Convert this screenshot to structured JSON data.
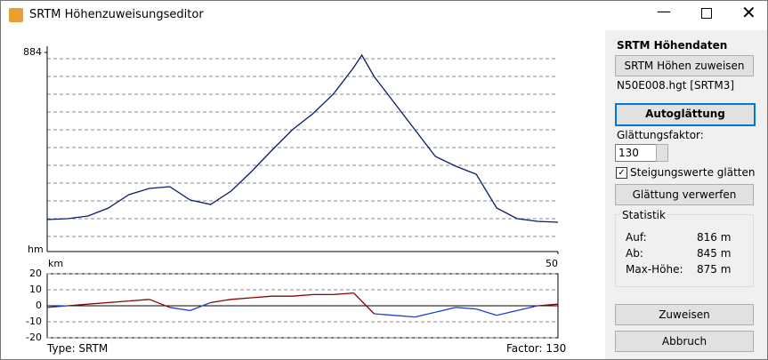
{
  "window": {
    "title": "SRTM Höhenzuweisungseditor"
  },
  "profile": {
    "type": "line",
    "color": "#0a1a6e",
    "x": [
      0,
      2,
      4,
      6,
      8,
      10,
      12,
      14,
      16,
      18,
      20,
      22,
      24,
      26,
      28,
      30,
      30.8,
      32,
      34,
      36,
      38,
      40,
      42,
      44,
      46,
      48,
      50
    ],
    "values": [
      320,
      323,
      332,
      359,
      404,
      425,
      431,
      386,
      371,
      416,
      482,
      554,
      623,
      677,
      743,
      833,
      875,
      803,
      713,
      623,
      533,
      500,
      473,
      359,
      323,
      314,
      311
    ],
    "xlim": [
      0,
      50
    ],
    "ylim": [
      212,
      884
    ],
    "yticks": [
      884
    ],
    "y_unit": "hm",
    "x_unit": "km",
    "xticks": [
      50
    ]
  },
  "slope": {
    "type": "line",
    "pos_color": "#8b0000",
    "neg_color": "#1f3fcf",
    "x": [
      0,
      2,
      4,
      6,
      8,
      10,
      12,
      14,
      16,
      18,
      20,
      22,
      24,
      26,
      28,
      30,
      32,
      34,
      36,
      38,
      40,
      42,
      44,
      46,
      48,
      50
    ],
    "values": [
      -1,
      0,
      1,
      2,
      3,
      4,
      -1,
      -3,
      2,
      4,
      5,
      6,
      6,
      7,
      7,
      8,
      -5,
      -6,
      -7,
      -4,
      -1,
      -2,
      -6,
      -3,
      0,
      1
    ],
    "xlim": [
      0,
      50
    ],
    "ylim": [
      -20,
      20
    ],
    "yticks": [
      20,
      10,
      0,
      -10,
      -20
    ]
  },
  "footer": {
    "type": "Type: SRTM",
    "factor": "Factor: 130"
  },
  "panel": {
    "heading": "SRTM Höhendaten",
    "assign_button": "SRTM Höhen zuweisen",
    "file": "N50E008.hgt [SRTM3]",
    "auto_button": "Autoglättung",
    "factor_label": "Glättungsfaktor:",
    "factor_value": "130",
    "checkbox": "Steigungswerte glätten",
    "discard_button": "Glättung verwerfen",
    "stats": {
      "title": "Statistik",
      "rows": [
        [
          "Auf:",
          "816 m"
        ],
        [
          "Ab:",
          "845 m"
        ],
        [
          "Max-Höhe:",
          "875 m"
        ]
      ]
    },
    "ok_button": "Zuweisen",
    "cancel_button": "Abbruch"
  }
}
